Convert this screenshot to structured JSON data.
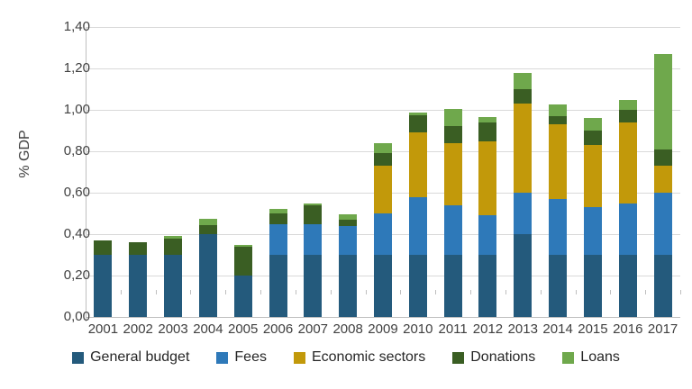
{
  "chart_data": {
    "type": "bar",
    "stacked": true,
    "title": "",
    "xlabel": "",
    "ylabel": "% GDP",
    "ylim": [
      0,
      1.4
    ],
    "ytick_labels": [
      "0,00",
      "0,20",
      "0,40",
      "0,60",
      "0,80",
      "1,00",
      "1,20",
      "1,40"
    ],
    "ytick_values": [
      0,
      0.2,
      0.4,
      0.6,
      0.8,
      1.0,
      1.2,
      1.4
    ],
    "grid": true,
    "grid_color": "#d9d9d9",
    "axis_color": "#bfbfbf",
    "text_color": "#404040",
    "legend_position": "bottom",
    "categories": [
      "2001",
      "2002",
      "2003",
      "2004",
      "2005",
      "2006",
      "2007",
      "2008",
      "2009",
      "2010",
      "2011",
      "2012",
      "2013",
      "2014",
      "2015",
      "2016",
      "2017"
    ],
    "series": [
      {
        "name": "General budget",
        "color": "#245a7c",
        "values": [
          0.3,
          0.3,
          0.3,
          0.4,
          0.2,
          0.3,
          0.3,
          0.3,
          0.3,
          0.3,
          0.3,
          0.3,
          0.4,
          0.3,
          0.3,
          0.3,
          0.3
        ]
      },
      {
        "name": "Fees",
        "color": "#2e79b9",
        "values": [
          0,
          0,
          0,
          0,
          0,
          0.15,
          0.15,
          0.14,
          0.2,
          0.28,
          0.24,
          0.19,
          0.2,
          0.27,
          0.23,
          0.25,
          0.3
        ]
      },
      {
        "name": "Economic sectors",
        "color": "#c2990a",
        "values": [
          0,
          0,
          0,
          0,
          0,
          0,
          0,
          0,
          0.23,
          0.31,
          0.3,
          0.36,
          0.43,
          0.36,
          0.3,
          0.39,
          0.13
        ]
      },
      {
        "name": "Donations",
        "color": "#3a5e23",
        "values": [
          0.07,
          0.06,
          0.08,
          0.045,
          0.14,
          0.05,
          0.09,
          0.03,
          0.06,
          0.085,
          0.08,
          0.09,
          0.07,
          0.04,
          0.07,
          0.06,
          0.08
        ]
      },
      {
        "name": "Loans",
        "color": "#6fa84c",
        "values": [
          0,
          0,
          0.01,
          0.03,
          0.01,
          0.02,
          0.01,
          0.025,
          0.05,
          0.01,
          0.085,
          0.025,
          0.08,
          0.055,
          0.06,
          0.05,
          0.46
        ]
      }
    ]
  }
}
